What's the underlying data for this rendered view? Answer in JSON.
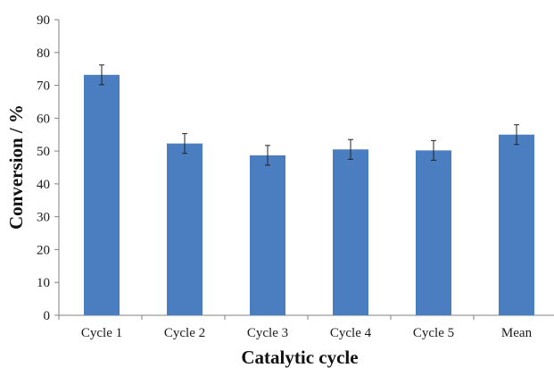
{
  "chart_data": {
    "type": "bar",
    "title": "",
    "xlabel": "Catalytic cycle",
    "ylabel": "Conversion / %",
    "categories": [
      "Cycle 1",
      "Cycle 2",
      "Cycle 3",
      "Cycle 4",
      "Cycle 5",
      "Mean"
    ],
    "values": [
      73.2,
      52.3,
      48.7,
      50.5,
      50.2,
      55.0
    ],
    "errors": [
      3.0,
      3.0,
      3.0,
      3.0,
      3.0,
      3.0
    ],
    "ylim": [
      0,
      90
    ],
    "yticks": [
      0,
      10,
      20,
      30,
      40,
      50,
      60,
      70,
      80,
      90
    ],
    "grid": false,
    "legend": "none",
    "bar_color": "#4A7EC1"
  }
}
